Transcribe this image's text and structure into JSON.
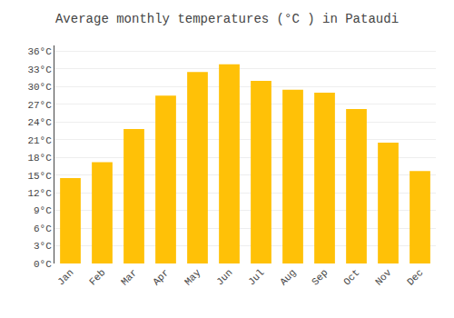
{
  "chart_data": {
    "type": "bar",
    "title": "Average monthly temperatures (°C ) in Pataudi",
    "categories": [
      "Jan",
      "Feb",
      "Mar",
      "Apr",
      "May",
      "Jun",
      "Jul",
      "Aug",
      "Sep",
      "Oct",
      "Nov",
      "Dec"
    ],
    "values": [
      14.5,
      17.2,
      22.8,
      28.5,
      32.5,
      33.8,
      31.0,
      29.5,
      29.0,
      26.2,
      20.5,
      15.7
    ],
    "color": "#FFC107",
    "ylim": [
      0,
      37
    ],
    "yticks": [
      {
        "value": 0,
        "label": "0°C"
      },
      {
        "value": 3,
        "label": "3°C"
      },
      {
        "value": 6,
        "label": "6°C"
      },
      {
        "value": 9,
        "label": "9°C"
      },
      {
        "value": 12,
        "label": "12°C"
      },
      {
        "value": 15,
        "label": "15°C"
      },
      {
        "value": 18,
        "label": "18°C"
      },
      {
        "value": 21,
        "label": "21°C"
      },
      {
        "value": 24,
        "label": "24°C"
      },
      {
        "value": 27,
        "label": "27°C"
      },
      {
        "value": 30,
        "label": "30°C"
      },
      {
        "value": 33,
        "label": "33°C"
      },
      {
        "value": 36,
        "label": "36°C"
      }
    ],
    "grid": true
  }
}
